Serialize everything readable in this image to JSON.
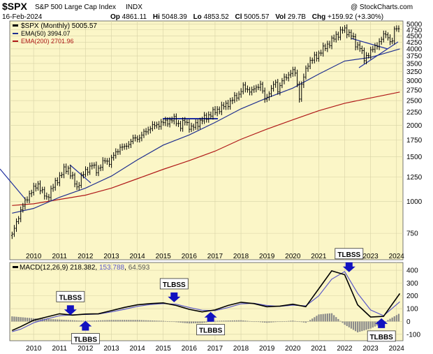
{
  "header": {
    "symbol": "$SPX",
    "name": "S&P 500 Large Cap Index",
    "exchange": "INDX",
    "date": "16-Feb-2024",
    "watermark": "@ StockCharts.com",
    "open_label": "Op",
    "open": "4861.11",
    "high_label": "Hi",
    "high": "5048.39",
    "low_label": "Lo",
    "low": "4853.52",
    "close_label": "Cl",
    "close": "5005.57",
    "volume_label": "Vol",
    "volume": "29.7B",
    "change_label": "Chg",
    "change": "+159.92 (+3.30%)"
  },
  "legend": {
    "price": "$SPX (Monthly) 5005.57",
    "ema50": "EMA(50) 3994.07",
    "ema200": "EMA(200) 2701.96"
  },
  "macd_label": {
    "params": "MACD(12,26,9)",
    "macd": "218.382",
    "signal": "153.788",
    "hist": "64.593"
  },
  "colors": {
    "price_bg": "#fbf6c7",
    "macd_bg": "#fbf6c7",
    "price": "#000000",
    "ema50": "#1f2f8f",
    "ema200": "#b01818",
    "trendline": "#1f2f9f",
    "signal": "#5a58c8",
    "hist": "#8a8a8a",
    "annotation": "#1212c0"
  },
  "chart_data": [
    {
      "type": "line",
      "title": "$SPX (Monthly)",
      "y_scale": "log",
      "ylim": [
        590,
        5150
      ],
      "y_ticks": [
        750,
        1000,
        1250,
        1500,
        1750,
        2000,
        2250,
        2500,
        2750,
        3000,
        3250,
        3500,
        3750,
        4000,
        4250,
        4500,
        4750,
        5000
      ],
      "x_ticks": [
        "2010",
        "2011",
        "2012",
        "2013",
        "2014",
        "2015",
        "2016",
        "2017",
        "2018",
        "2019",
        "2020",
        "2021",
        "2022",
        "2023",
        "2024"
      ],
      "grid": true,
      "legend_position": "top-left",
      "series": [
        {
          "name": "$SPX (Monthly)",
          "x": [
            2009.17,
            2009.5,
            2009.83,
            2010.17,
            2010.33,
            2010.5,
            2010.83,
            2011.17,
            2011.33,
            2011.67,
            2011.83,
            2012.25,
            2012.42,
            2012.75,
            2012.92,
            2013.33,
            2013.5,
            2013.83,
            2014.08,
            2014.5,
            2014.83,
            2015.42,
            2015.67,
            2015.83,
            2016.08,
            2016.5,
            2016.92,
            2017.5,
            2017.92,
            2018.08,
            2018.42,
            2018.75,
            2018.92,
            2019.33,
            2019.42,
            2019.58,
            2019.92,
            2020.08,
            2020.25,
            2020.42,
            2020.58,
            2020.92,
            2021.5,
            2021.92,
            2022.25,
            2022.42,
            2022.58,
            2022.75,
            2022.92,
            2023.17,
            2023.58,
            2023.83,
            2023.92,
            2024.08,
            2024.13
          ],
          "values": [
            735,
            920,
            1070,
            1170,
            1090,
            1030,
            1180,
            1330,
            1350,
            1130,
            1250,
            1400,
            1320,
            1450,
            1430,
            1640,
            1630,
            1760,
            1790,
            1960,
            2020,
            2110,
            1980,
            2080,
            1940,
            2100,
            2240,
            2430,
            2650,
            2820,
            2720,
            2910,
            2510,
            2950,
            2750,
            2980,
            3230,
            3250,
            2580,
            3100,
            3500,
            3750,
            4300,
            4770,
            4560,
            4130,
            4120,
            3600,
            3850,
            4050,
            4590,
            4190,
            4770,
            4850,
            5005.57
          ]
        },
        {
          "name": "EMA(50)",
          "x": [
            2009.17,
            2010,
            2011,
            2012,
            2013,
            2014,
            2015,
            2016,
            2017,
            2018,
            2019,
            2020,
            2021,
            2022,
            2023,
            2024.13
          ],
          "values": [
            900,
            940,
            1040,
            1130,
            1260,
            1460,
            1670,
            1830,
            2050,
            2320,
            2560,
            2800,
            3180,
            3580,
            3700,
            3994.07
          ]
        },
        {
          "name": "EMA(200)",
          "x": [
            2009.17,
            2010,
            2011,
            2012,
            2013,
            2014,
            2015,
            2016,
            2017,
            2018,
            2019,
            2020,
            2021,
            2022,
            2023,
            2024.13
          ],
          "values": [
            965,
            980,
            1020,
            1060,
            1130,
            1230,
            1340,
            1450,
            1580,
            1760,
            1930,
            2100,
            2280,
            2440,
            2560,
            2701.96
          ]
        }
      ]
    },
    {
      "type": "line",
      "title": "MACD(12,26,9)",
      "ylim": [
        -150,
        460
      ],
      "y_ticks": [
        -100,
        0,
        100,
        200,
        300,
        400
      ],
      "x_ticks": [
        "2010",
        "2011",
        "2012",
        "2013",
        "2014",
        "2015",
        "2016",
        "2017",
        "2018",
        "2019",
        "2020",
        "2021",
        "2022",
        "2023",
        "2024"
      ],
      "grid": true,
      "series": [
        {
          "name": "MACD(12,26,9)",
          "x": [
            2009.17,
            2009.5,
            2010,
            2010.5,
            2011,
            2011.5,
            2012,
            2012.5,
            2013,
            2013.5,
            2014,
            2014.5,
            2015,
            2015.5,
            2016,
            2016.5,
            2017,
            2017.5,
            2018,
            2018.5,
            2019,
            2019.5,
            2020,
            2020.5,
            2021,
            2021.5,
            2022,
            2022.5,
            2023,
            2023.5,
            2024.13
          ],
          "values": [
            -70,
            -40,
            10,
            35,
            60,
            50,
            58,
            60,
            85,
            110,
            130,
            140,
            145,
            125,
            95,
            75,
            90,
            125,
            150,
            140,
            115,
            120,
            135,
            115,
            255,
            395,
            365,
            130,
            35,
            40,
            218.382
          ]
        },
        {
          "name": "Signal",
          "x": [
            2009.17,
            2009.5,
            2010,
            2010.5,
            2011,
            2011.5,
            2012,
            2012.5,
            2013,
            2013.5,
            2014,
            2014.5,
            2015,
            2015.5,
            2016,
            2016.5,
            2017,
            2017.5,
            2018,
            2018.5,
            2019,
            2019.5,
            2020,
            2020.5,
            2021,
            2021.5,
            2022,
            2022.5,
            2023,
            2023.5,
            2024.13
          ],
          "values": [
            -80,
            -60,
            -10,
            20,
            45,
            52,
            55,
            58,
            75,
            95,
            118,
            132,
            140,
            135,
            110,
            88,
            85,
            108,
            138,
            142,
            125,
            118,
            128,
            122,
            200,
            330,
            390,
            220,
            90,
            45,
            153.788
          ]
        },
        {
          "name": "Histogram",
          "x": [
            2009.17,
            2010,
            2011,
            2012,
            2013,
            2014,
            2015,
            2016,
            2016.5,
            2017,
            2018,
            2019,
            2020,
            2020.5,
            2021,
            2021.5,
            2022,
            2022.5,
            2023,
            2023.5,
            2024.13
          ],
          "values": [
            40,
            25,
            15,
            5,
            12,
            12,
            5,
            -15,
            -12,
            5,
            10,
            -10,
            7,
            -10,
            55,
            65,
            -25,
            -85,
            -55,
            -8,
            64.593
          ]
        }
      ]
    }
  ],
  "annotations": [
    {
      "label": "TLBSS",
      "x": 2011.42,
      "y": 50,
      "dir": "down"
    },
    {
      "label": "TLBSS",
      "x": 2015.42,
      "y": 150,
      "dir": "down"
    },
    {
      "label": "TLBSS",
      "x": 2022.17,
      "y": 385,
      "dir": "down"
    },
    {
      "label": "TLBBS",
      "x": 2012.0,
      "y": 5,
      "dir": "up"
    },
    {
      "label": "TLBBS",
      "x": 2016.83,
      "y": 75,
      "dir": "up"
    },
    {
      "label": "TLBBS",
      "x": 2023.42,
      "y": 25,
      "dir": "up"
    }
  ]
}
